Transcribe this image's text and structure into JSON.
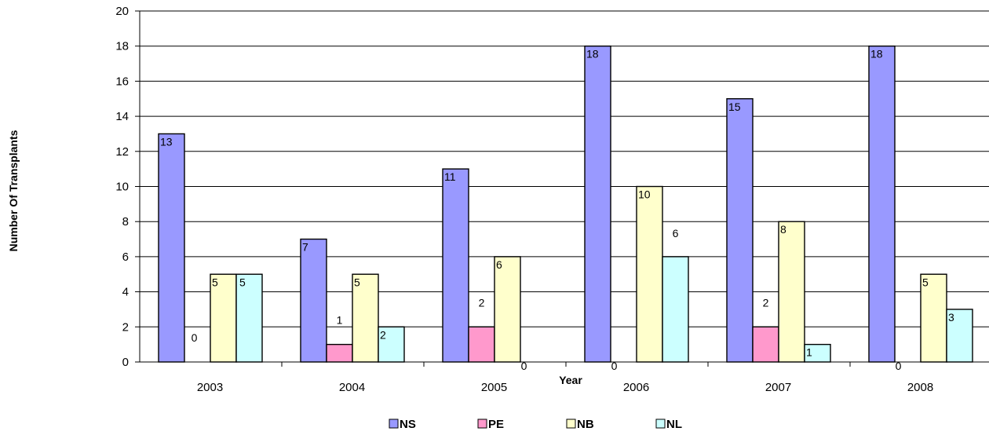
{
  "chart_data": {
    "type": "bar",
    "title": "",
    "xlabel": "Year",
    "ylabel": "Number Of Transplants",
    "categories": [
      "2003",
      "2004",
      "2005",
      "2006",
      "2007",
      "2008"
    ],
    "ylim": [
      0,
      20
    ],
    "yticks": [
      "0",
      "2",
      "4",
      "6",
      "8",
      "10",
      "12",
      "14",
      "16",
      "18",
      "20"
    ],
    "grid": true,
    "legend_position": "bottom",
    "series": [
      {
        "name": "NS",
        "color": "#9999ff",
        "values": [
          13,
          7,
          11,
          18,
          15,
          18
        ]
      },
      {
        "name": "PE",
        "color": "#ff99cc",
        "values": [
          0,
          1,
          2,
          0,
          2,
          0
        ]
      },
      {
        "name": "NB",
        "color": "#ffffcc",
        "values": [
          5,
          5,
          6,
          10,
          8,
          5
        ]
      },
      {
        "name": "NL",
        "color": "#ccffff",
        "values": [
          5,
          2,
          0,
          6,
          1,
          3
        ]
      }
    ],
    "data_labels": [
      [
        "13",
        "7",
        "11",
        "18",
        "15",
        "18"
      ],
      [
        "0",
        "1",
        "2",
        "0",
        "2",
        "0"
      ],
      [
        "5",
        "5",
        "6",
        "10",
        "8",
        "5"
      ],
      [
        "5",
        "2",
        "0",
        "6",
        "1",
        "3"
      ]
    ]
  }
}
